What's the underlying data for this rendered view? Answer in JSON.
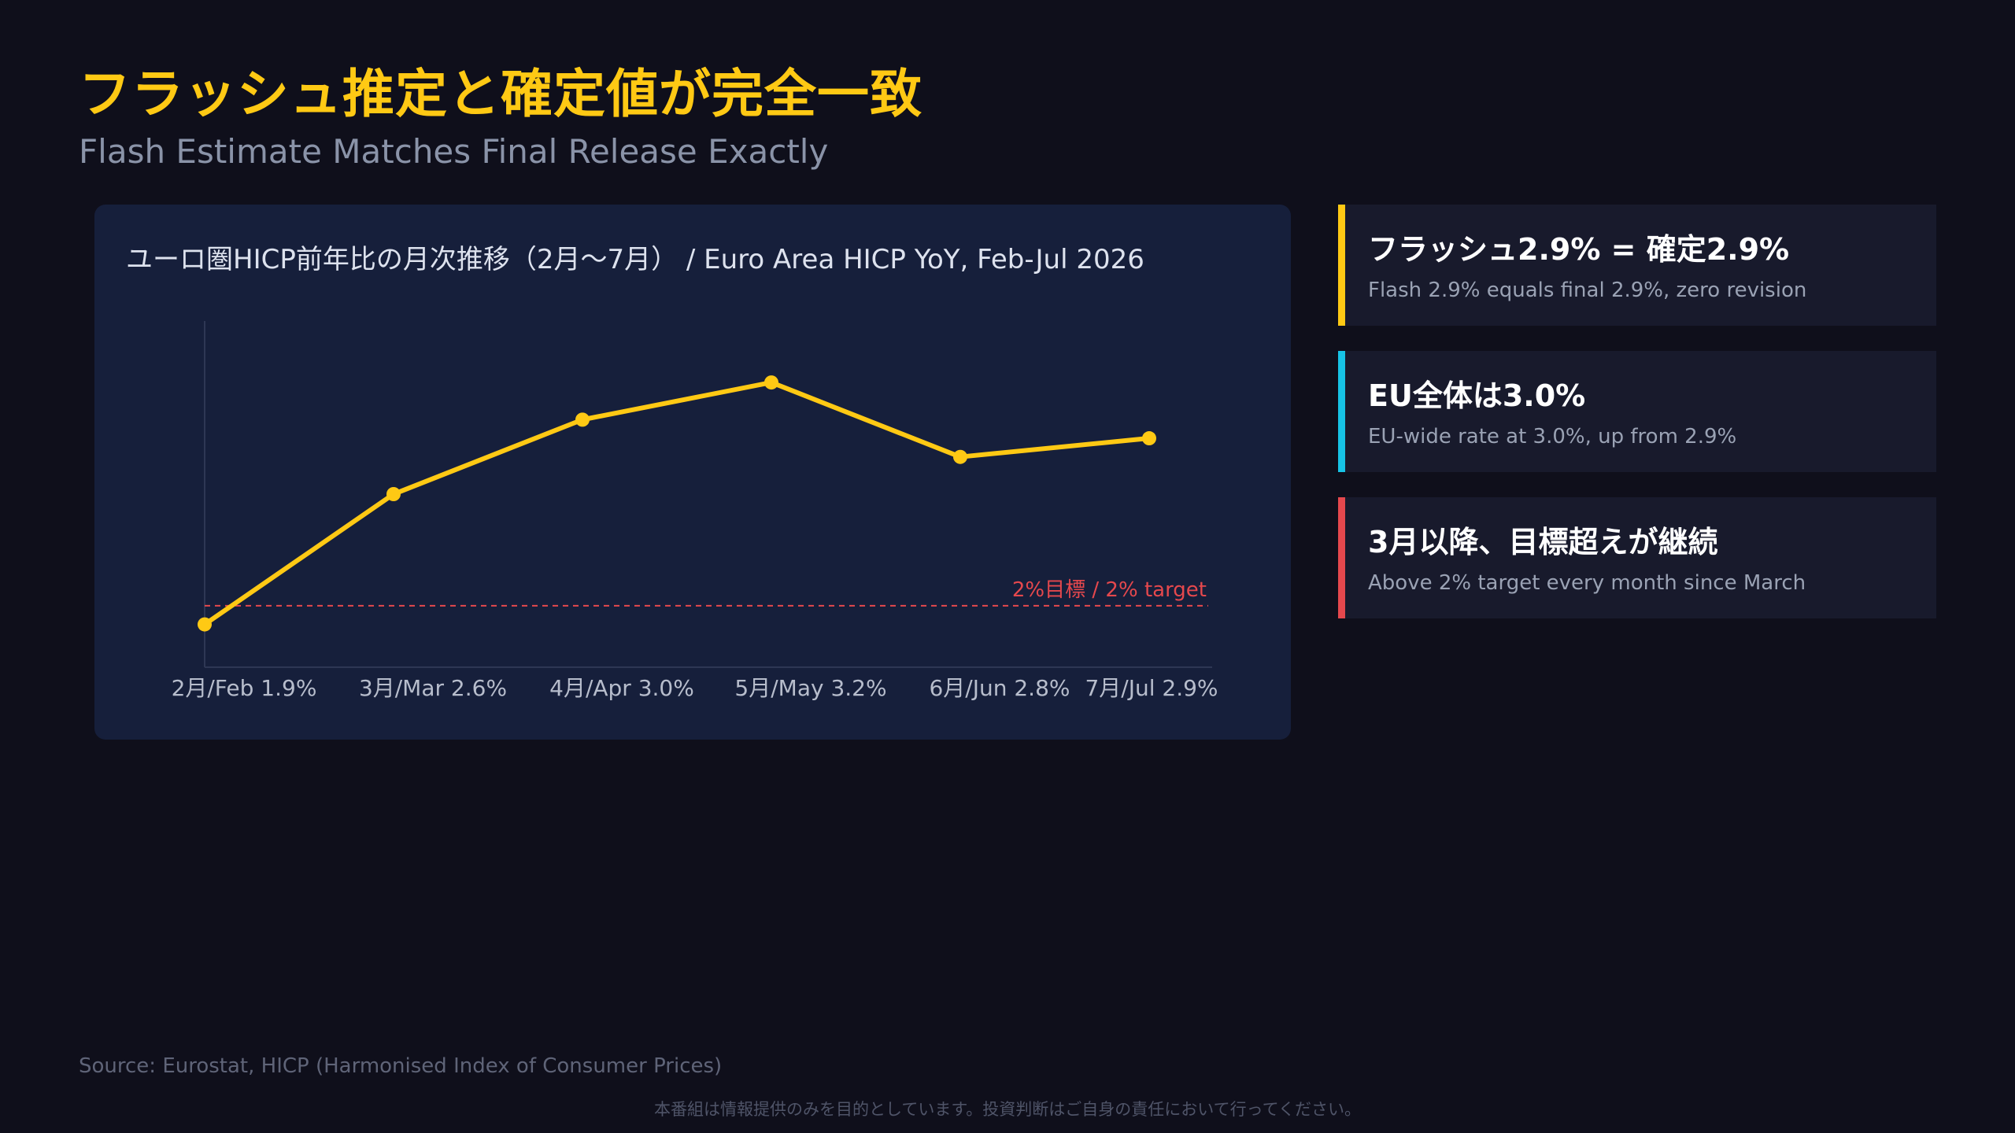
{
  "header": {
    "title": "フラッシュ推定と確定値が完全一致",
    "subtitle": "Flash Estimate Matches Final Release Exactly"
  },
  "chart_data": {
    "type": "line",
    "title": "ユーロ圏HICP前年比の月次推移（2月〜7月） / Euro Area HICP YoY, Feb-Jul 2026",
    "categories": [
      "2月/Feb 1.9%",
      "3月/Mar 2.6%",
      "4月/Apr 3.0%",
      "5月/May 3.2%",
      "6月/Jun 2.8%",
      "7月/Jul 2.9%"
    ],
    "series": [
      {
        "values": [
          1.9,
          2.6,
          3.0,
          3.2,
          2.8,
          2.9
        ]
      }
    ],
    "reference_line": {
      "value": 2.0,
      "label": "2%目標 / 2% target",
      "color": "#e5484d"
    },
    "ylim": [
      1.67,
      3.53
    ],
    "grid": false,
    "line_color": "#ffc914"
  },
  "cards": [
    {
      "title": "フラッシュ2.9% = 確定2.9%",
      "text": "Flash 2.9% equals final 2.9%, zero revision",
      "accent": "#ffc914"
    },
    {
      "title": "EU全体は3.0%",
      "text": "EU-wide rate at 3.0%, up from 2.9%",
      "accent": "#17c3e6"
    },
    {
      "title": "3月以降、目標超えが継続",
      "text": "Above 2% target every month since March",
      "accent": "#e5484d"
    }
  ],
  "footer": {
    "source": "Source: Eurostat, HICP (Harmonised Index of Consumer Prices)",
    "disclaimer": "本番組は情報提供のみを目的としています。投資判断はご自身の責任において行ってください。"
  }
}
